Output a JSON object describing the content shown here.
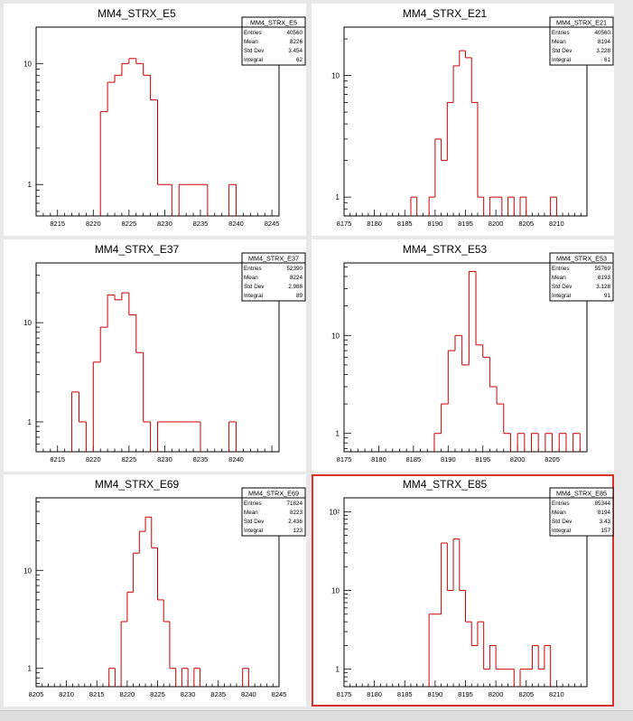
{
  "canvas": {
    "selected_pad": 5
  },
  "chart_data": [
    {
      "type": "histogram",
      "title": "MM4_STRX_E5",
      "stats": {
        "title": "MM4_STRX_E5",
        "rows": [
          [
            "Entries",
            "40560"
          ],
          [
            "Mean",
            "8226"
          ],
          [
            "Std Dev",
            "3.454"
          ],
          [
            "Integral",
            "62"
          ]
        ]
      },
      "xlim": [
        8212,
        8246
      ],
      "ylim": [
        0.55,
        20
      ],
      "log_y": true,
      "xticks": [
        8215,
        8220,
        8225,
        8230,
        8235,
        8240,
        8245
      ],
      "yticks": [
        {
          "value": 1,
          "label": "1"
        },
        {
          "value": 10,
          "label": "10"
        }
      ],
      "bins": [
        [
          8221,
          8222,
          4
        ],
        [
          8222,
          8223,
          7
        ],
        [
          8223,
          8224,
          8
        ],
        [
          8224,
          8225,
          10
        ],
        [
          8225,
          8226,
          11
        ],
        [
          8226,
          8227,
          10
        ],
        [
          8227,
          8228,
          8
        ],
        [
          8228,
          8229,
          5
        ],
        [
          8229,
          8230,
          1
        ],
        [
          8230,
          8231,
          1
        ],
        [
          8232,
          8233,
          1
        ],
        [
          8233,
          8234,
          1
        ],
        [
          8234,
          8235,
          1
        ],
        [
          8235,
          8236,
          1
        ],
        [
          8239,
          8240,
          1
        ]
      ],
      "line_color": "#cc0000"
    },
    {
      "type": "histogram",
      "title": "MM4_STRX_E21",
      "stats": {
        "title": "MM4_STRX_E21",
        "rows": [
          [
            "Entries",
            "40560"
          ],
          [
            "Mean",
            "8194"
          ],
          [
            "Std Dev",
            "3.228"
          ],
          [
            "Integral",
            "61"
          ]
        ]
      },
      "xlim": [
        8175,
        8215
      ],
      "ylim": [
        0.7,
        25
      ],
      "log_y": true,
      "xticks": [
        8175,
        8180,
        8185,
        8190,
        8195,
        8200,
        8205,
        8210
      ],
      "yticks": [
        {
          "value": 1,
          "label": "1"
        },
        {
          "value": 10,
          "label": "10"
        }
      ],
      "bins": [
        [
          8186,
          8187,
          1
        ],
        [
          8189,
          8190,
          1
        ],
        [
          8190,
          8191,
          3
        ],
        [
          8191,
          8192,
          2
        ],
        [
          8192,
          8193,
          6
        ],
        [
          8193,
          8194,
          12
        ],
        [
          8194,
          8195,
          16
        ],
        [
          8195,
          8196,
          14
        ],
        [
          8196,
          8197,
          6
        ],
        [
          8197,
          8198,
          1
        ],
        [
          8199,
          8200,
          1
        ],
        [
          8200,
          8201,
          1
        ],
        [
          8202,
          8203,
          1
        ],
        [
          8204,
          8205,
          1
        ],
        [
          8209,
          8210,
          1
        ]
      ],
      "line_color": "#cc0000"
    },
    {
      "type": "histogram",
      "title": "MM4_STRX_E37",
      "stats": {
        "title": "MM4_STRX_E37",
        "rows": [
          [
            "Entries",
            "52390"
          ],
          [
            "Mean",
            "8224"
          ],
          [
            "Std Dev",
            "2.988"
          ],
          [
            "Integral",
            "89"
          ]
        ]
      },
      "xlim": [
        8212,
        8246
      ],
      "ylim": [
        0.5,
        40
      ],
      "log_y": true,
      "xticks": [
        8215,
        8220,
        8225,
        8230,
        8235,
        8240
      ],
      "yticks": [
        {
          "value": 1,
          "label": "1"
        },
        {
          "value": 10,
          "label": "10"
        }
      ],
      "bins": [
        [
          8217,
          8218,
          2
        ],
        [
          8218,
          8219,
          1
        ],
        [
          8220,
          8221,
          4
        ],
        [
          8221,
          8222,
          9
        ],
        [
          8222,
          8223,
          19
        ],
        [
          8223,
          8224,
          17
        ],
        [
          8224,
          8225,
          20
        ],
        [
          8225,
          8226,
          12
        ],
        [
          8226,
          8227,
          5
        ],
        [
          8227,
          8228,
          1
        ],
        [
          8229,
          8230,
          1
        ],
        [
          8230,
          8231,
          1
        ],
        [
          8231,
          8232,
          1
        ],
        [
          8232,
          8233,
          1
        ],
        [
          8233,
          8234,
          1
        ],
        [
          8234,
          8235,
          1
        ],
        [
          8239,
          8240,
          1
        ]
      ],
      "line_color": "#cc0000"
    },
    {
      "type": "histogram",
      "title": "MM4_STRX_E53",
      "stats": {
        "title": "MM4_STRX_E53",
        "rows": [
          [
            "Entries",
            "55769"
          ],
          [
            "Mean",
            "8193"
          ],
          [
            "Std Dev",
            "3.128"
          ],
          [
            "Integral",
            "91"
          ]
        ]
      },
      "xlim": [
        8175,
        8210
      ],
      "ylim": [
        0.65,
        55
      ],
      "log_y": true,
      "xticks": [
        8175,
        8180,
        8185,
        8190,
        8195,
        8200,
        8205
      ],
      "yticks": [
        {
          "value": 1,
          "label": "1"
        },
        {
          "value": 10,
          "label": "10"
        }
      ],
      "bins": [
        [
          8188,
          8189,
          1
        ],
        [
          8189,
          8190,
          2
        ],
        [
          8190,
          8191,
          7
        ],
        [
          8191,
          8192,
          10
        ],
        [
          8192,
          8193,
          5
        ],
        [
          8193,
          8194,
          45
        ],
        [
          8194,
          8195,
          8
        ],
        [
          8195,
          8196,
          6
        ],
        [
          8196,
          8197,
          3
        ],
        [
          8197,
          8198,
          2
        ],
        [
          8198,
          8199,
          1
        ],
        [
          8200,
          8201,
          1
        ],
        [
          8202,
          8203,
          1
        ],
        [
          8204,
          8205,
          1
        ],
        [
          8206,
          8207,
          1
        ],
        [
          8208,
          8209,
          1
        ]
      ],
      "line_color": "#cc0000"
    },
    {
      "type": "histogram",
      "title": "MM4_STRX_E69",
      "stats": {
        "title": "MM4_STRX_E69",
        "rows": [
          [
            "Entries",
            "71824"
          ],
          [
            "Mean",
            "8223"
          ],
          [
            "Std Dev",
            "2.436"
          ],
          [
            "Integral",
            "123"
          ]
        ]
      },
      "xlim": [
        8205,
        8245
      ],
      "ylim": [
        0.65,
        55
      ],
      "log_y": true,
      "xticks": [
        8205,
        8210,
        8215,
        8220,
        8225,
        8230,
        8235,
        8240,
        8245
      ],
      "yticks": [
        {
          "value": 1,
          "label": "1"
        },
        {
          "value": 10,
          "label": "10"
        }
      ],
      "bins": [
        [
          8217,
          8218,
          1
        ],
        [
          8219,
          8220,
          3
        ],
        [
          8220,
          8221,
          6
        ],
        [
          8221,
          8222,
          15
        ],
        [
          8222,
          8223,
          25
        ],
        [
          8223,
          8224,
          35
        ],
        [
          8224,
          8225,
          17
        ],
        [
          8225,
          8226,
          5
        ],
        [
          8226,
          8227,
          3
        ],
        [
          8227,
          8228,
          1
        ],
        [
          8229,
          8230,
          1
        ],
        [
          8231,
          8232,
          1
        ],
        [
          8239,
          8240,
          1
        ]
      ],
      "line_color": "#cc0000"
    },
    {
      "type": "histogram",
      "title": "MM4_STRX_E85",
      "stats": {
        "title": "MM4_STRX_E85",
        "rows": [
          [
            "Entries",
            "85344"
          ],
          [
            "Mean",
            "8194"
          ],
          [
            "Std Dev",
            "3.43"
          ],
          [
            "Integral",
            "157"
          ]
        ]
      },
      "xlim": [
        8175,
        8215
      ],
      "ylim": [
        0.6,
        150
      ],
      "log_y": true,
      "xticks": [
        8175,
        8180,
        8185,
        8190,
        8195,
        8200,
        8205,
        8210
      ],
      "yticks": [
        {
          "value": 1,
          "label": "1"
        },
        {
          "value": 10,
          "label": "10"
        },
        {
          "value": 100,
          "label": "10²"
        }
      ],
      "bins": [
        [
          8189,
          8190,
          5
        ],
        [
          8190,
          8191,
          5
        ],
        [
          8191,
          8192,
          40
        ],
        [
          8192,
          8193,
          10
        ],
        [
          8193,
          8194,
          45
        ],
        [
          8194,
          8195,
          10
        ],
        [
          8195,
          8196,
          4
        ],
        [
          8196,
          8197,
          2
        ],
        [
          8197,
          8198,
          4
        ],
        [
          8198,
          8199,
          1
        ],
        [
          8199,
          8200,
          2
        ],
        [
          8200,
          8201,
          1
        ],
        [
          8201,
          8202,
          1
        ],
        [
          8202,
          8203,
          1
        ],
        [
          8204,
          8205,
          1
        ],
        [
          8205,
          8206,
          1
        ],
        [
          8206,
          8207,
          2
        ],
        [
          8207,
          8208,
          1
        ],
        [
          8208,
          8209,
          2
        ]
      ],
      "line_color": "#cc0000"
    }
  ]
}
